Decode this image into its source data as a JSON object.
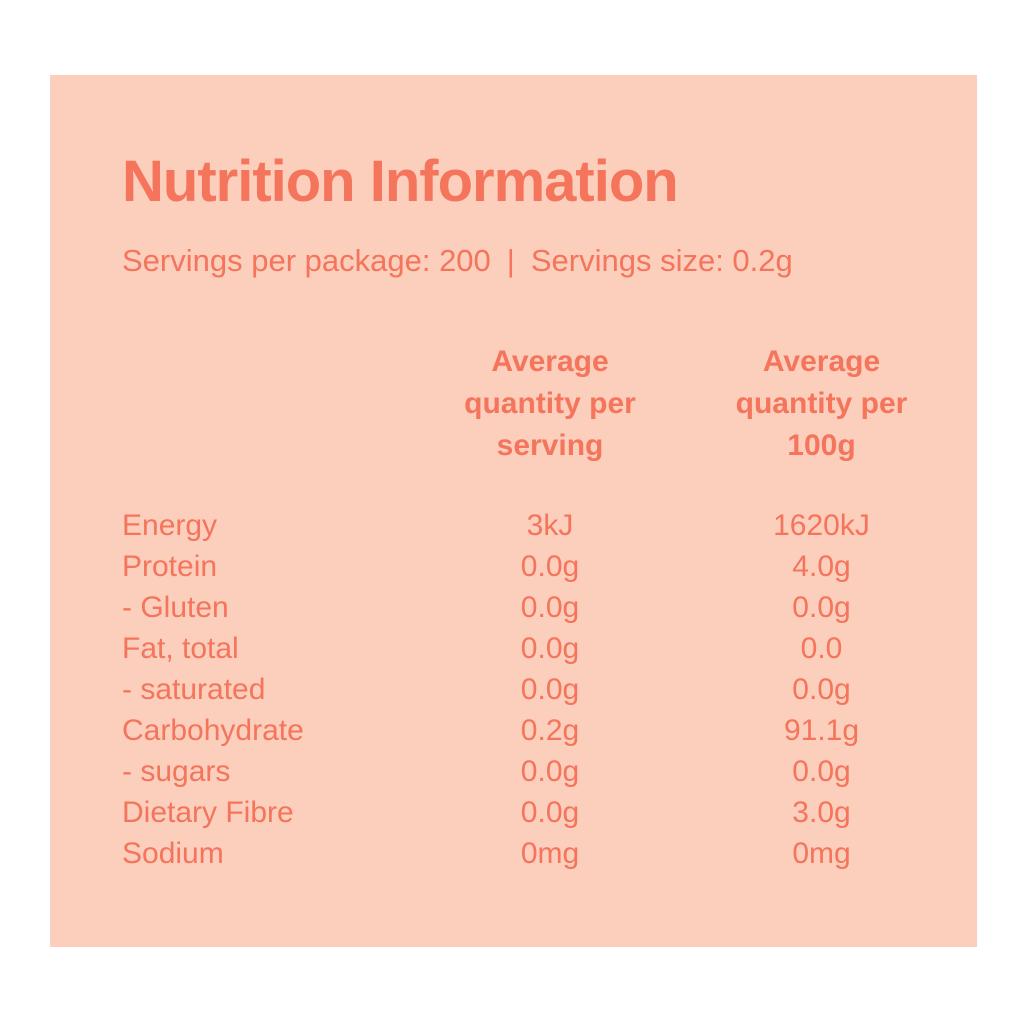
{
  "colors": {
    "page_background": "#ffffff",
    "panel_background": "#fccebc",
    "text": "#f4745c"
  },
  "panel": {
    "title": "Nutrition Information",
    "servings_per_package": "Servings per package: 200",
    "divider": "|",
    "serving_size": "Servings size: 0.2g"
  },
  "table": {
    "column_headers": {
      "per_serving": "Average\nquantity per\nserving",
      "per_100g": "Average\nquantity per\n100g"
    },
    "rows": [
      {
        "label": "Energy",
        "per_serving": "3kJ",
        "per_100g": "1620kJ"
      },
      {
        "label": "Protein",
        "per_serving": "0.0g",
        "per_100g": "4.0g"
      },
      {
        "label": "- Gluten",
        "per_serving": "0.0g",
        "per_100g": "0.0g"
      },
      {
        "label": "Fat, total",
        "per_serving": "0.0g",
        "per_100g": "0.0"
      },
      {
        "label": "- saturated",
        "per_serving": "0.0g",
        "per_100g": "0.0g"
      },
      {
        "label": "Carbohydrate",
        "per_serving": "0.2g",
        "per_100g": "91.1g"
      },
      {
        "label": "- sugars",
        "per_serving": "0.0g",
        "per_100g": "0.0g"
      },
      {
        "label": "Dietary Fibre",
        "per_serving": "0.0g",
        "per_100g": "3.0g"
      },
      {
        "label": "Sodium",
        "per_serving": "0mg",
        "per_100g": "0mg"
      }
    ]
  }
}
